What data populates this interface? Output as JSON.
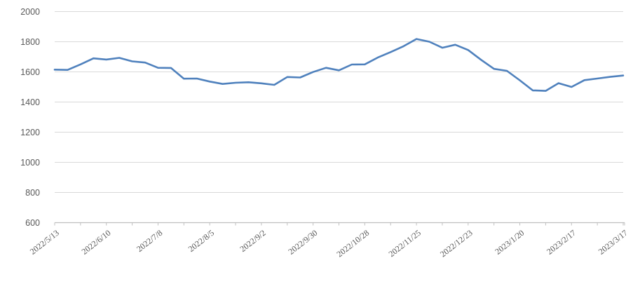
{
  "chart_data": {
    "type": "line",
    "title": "",
    "xlabel": "",
    "ylabel": "",
    "legend_position": "none",
    "grid": true,
    "ylim": [
      600,
      2000
    ],
    "y_ticks": [
      600,
      800,
      1000,
      1200,
      1400,
      1600,
      1800,
      2000
    ],
    "x": [
      "2022/5/13",
      "2022/5/20",
      "2022/5/27",
      "2022/6/3",
      "2022/6/10",
      "2022/6/17",
      "2022/6/24",
      "2022/7/1",
      "2022/7/8",
      "2022/7/15",
      "2022/7/22",
      "2022/7/29",
      "2022/8/5",
      "2022/8/12",
      "2022/8/19",
      "2022/8/26",
      "2022/9/2",
      "2022/9/9",
      "2022/9/16",
      "2022/9/23",
      "2022/9/30",
      "2022/10/7",
      "2022/10/14",
      "2022/10/21",
      "2022/10/28",
      "2022/11/4",
      "2022/11/11",
      "2022/11/18",
      "2022/11/25",
      "2022/12/2",
      "2022/12/9",
      "2022/12/16",
      "2022/12/23",
      "2022/12/30",
      "2023/1/6",
      "2023/1/13",
      "2023/1/20",
      "2023/1/27",
      "2023/2/3",
      "2023/2/10",
      "2023/2/17",
      "2023/2/24",
      "2023/3/3",
      "2023/3/10",
      "2023/3/17"
    ],
    "values": [
      1615,
      1613,
      1650,
      1690,
      1682,
      1693,
      1670,
      1662,
      1627,
      1626,
      1555,
      1556,
      1536,
      1520,
      1528,
      1531,
      1524,
      1514,
      1566,
      1563,
      1599,
      1627,
      1610,
      1649,
      1650,
      1695,
      1731,
      1770,
      1818,
      1800,
      1760,
      1780,
      1745,
      1680,
      1620,
      1607,
      1544,
      1477,
      1474,
      1525,
      1500,
      1545,
      1556,
      1567,
      1576
    ],
    "x_tick_labels": [
      "2022/5/13",
      "2022/6/10",
      "2022/7/8",
      "2022/8/5",
      "2022/9/2",
      "2022/9/30",
      "2022/10/28",
      "2022/11/25",
      "2022/12/23",
      "2023/1/20",
      "2023/2/17",
      "2023/3/17"
    ],
    "x_label_every": 4,
    "x_minor_tick_every": 2,
    "colors": {
      "series": "#4f81bd",
      "gridline": "#d9d9d9",
      "axis": "#bfbfbf",
      "label": "#595959",
      "background": "#ffffff"
    }
  }
}
